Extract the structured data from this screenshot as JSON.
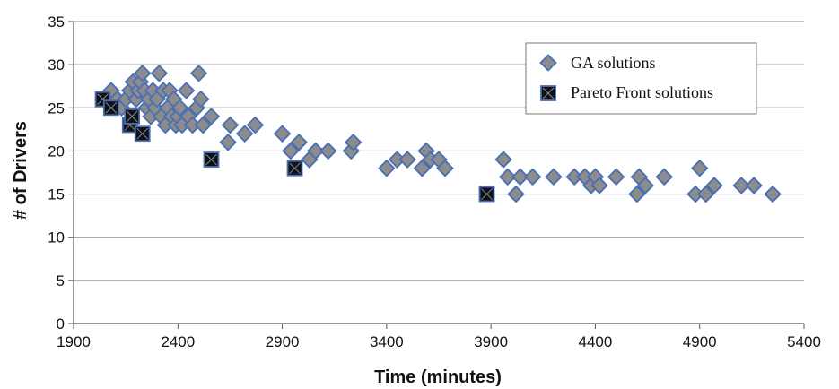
{
  "chart_data": {
    "type": "scatter",
    "title": "",
    "xlabel": "Time (minutes)",
    "ylabel": "# of Drivers",
    "xlim": [
      1900,
      5400
    ],
    "ylim": [
      0,
      35
    ],
    "x_ticks": [
      1900,
      2400,
      2900,
      3400,
      3900,
      4400,
      4900,
      5400
    ],
    "y_ticks": [
      0,
      5,
      10,
      15,
      20,
      25,
      30,
      35
    ],
    "grid": "horizontal",
    "legend_position": "top-right",
    "colors": {
      "ga_fill": "#8c8c8c",
      "ga_edge": "#4a6fb5",
      "pareto_fill": "#111111",
      "pareto_edge": "#4a6fb5",
      "grid": "#a0a0a0",
      "axis": "#555555"
    },
    "series": [
      {
        "name": "GA solutions",
        "marker": "diamond",
        "points": [
          [
            2080,
            27
          ],
          [
            2110,
            26
          ],
          [
            2130,
            25
          ],
          [
            2150,
            26
          ],
          [
            2170,
            27
          ],
          [
            2185,
            28
          ],
          [
            2200,
            26
          ],
          [
            2210,
            27
          ],
          [
            2220,
            28
          ],
          [
            2230,
            29
          ],
          [
            2240,
            27
          ],
          [
            2250,
            25
          ],
          [
            2260,
            26
          ],
          [
            2270,
            24
          ],
          [
            2280,
            27
          ],
          [
            2290,
            25
          ],
          [
            2300,
            26
          ],
          [
            2310,
            29
          ],
          [
            2320,
            24
          ],
          [
            2330,
            27
          ],
          [
            2340,
            23
          ],
          [
            2350,
            25
          ],
          [
            2360,
            27
          ],
          [
            2370,
            24
          ],
          [
            2380,
            26
          ],
          [
            2390,
            23
          ],
          [
            2400,
            24
          ],
          [
            2410,
            25
          ],
          [
            2420,
            23
          ],
          [
            2440,
            27
          ],
          [
            2450,
            24
          ],
          [
            2470,
            23
          ],
          [
            2490,
            25
          ],
          [
            2500,
            29
          ],
          [
            2510,
            26
          ],
          [
            2520,
            23
          ],
          [
            2560,
            24
          ],
          [
            2640,
            21
          ],
          [
            2650,
            23
          ],
          [
            2720,
            22
          ],
          [
            2770,
            23
          ],
          [
            2900,
            22
          ],
          [
            2940,
            20
          ],
          [
            2980,
            21
          ],
          [
            3030,
            19
          ],
          [
            3060,
            20
          ],
          [
            3120,
            20
          ],
          [
            3230,
            20
          ],
          [
            3240,
            21
          ],
          [
            3400,
            18
          ],
          [
            3450,
            19
          ],
          [
            3500,
            19
          ],
          [
            3570,
            18
          ],
          [
            3590,
            20
          ],
          [
            3610,
            19
          ],
          [
            3650,
            19
          ],
          [
            3680,
            18
          ],
          [
            3960,
            19
          ],
          [
            3980,
            17
          ],
          [
            4020,
            15
          ],
          [
            4040,
            17
          ],
          [
            4100,
            17
          ],
          [
            4200,
            17
          ],
          [
            4300,
            17
          ],
          [
            4350,
            17
          ],
          [
            4380,
            16
          ],
          [
            4400,
            17
          ],
          [
            4420,
            16
          ],
          [
            4500,
            17
          ],
          [
            4600,
            15
          ],
          [
            4610,
            17
          ],
          [
            4640,
            16
          ],
          [
            4730,
            17
          ],
          [
            4880,
            15
          ],
          [
            4900,
            18
          ],
          [
            4930,
            15
          ],
          [
            4970,
            16
          ],
          [
            5100,
            16
          ],
          [
            5160,
            16
          ],
          [
            5250,
            15
          ]
        ]
      },
      {
        "name": "Pareto Front solutions",
        "marker": "square",
        "points": [
          [
            2040,
            26
          ],
          [
            2080,
            25
          ],
          [
            2170,
            23
          ],
          [
            2180,
            24
          ],
          [
            2230,
            22
          ],
          [
            2560,
            19
          ],
          [
            2960,
            18
          ],
          [
            3880,
            15
          ]
        ]
      }
    ]
  }
}
